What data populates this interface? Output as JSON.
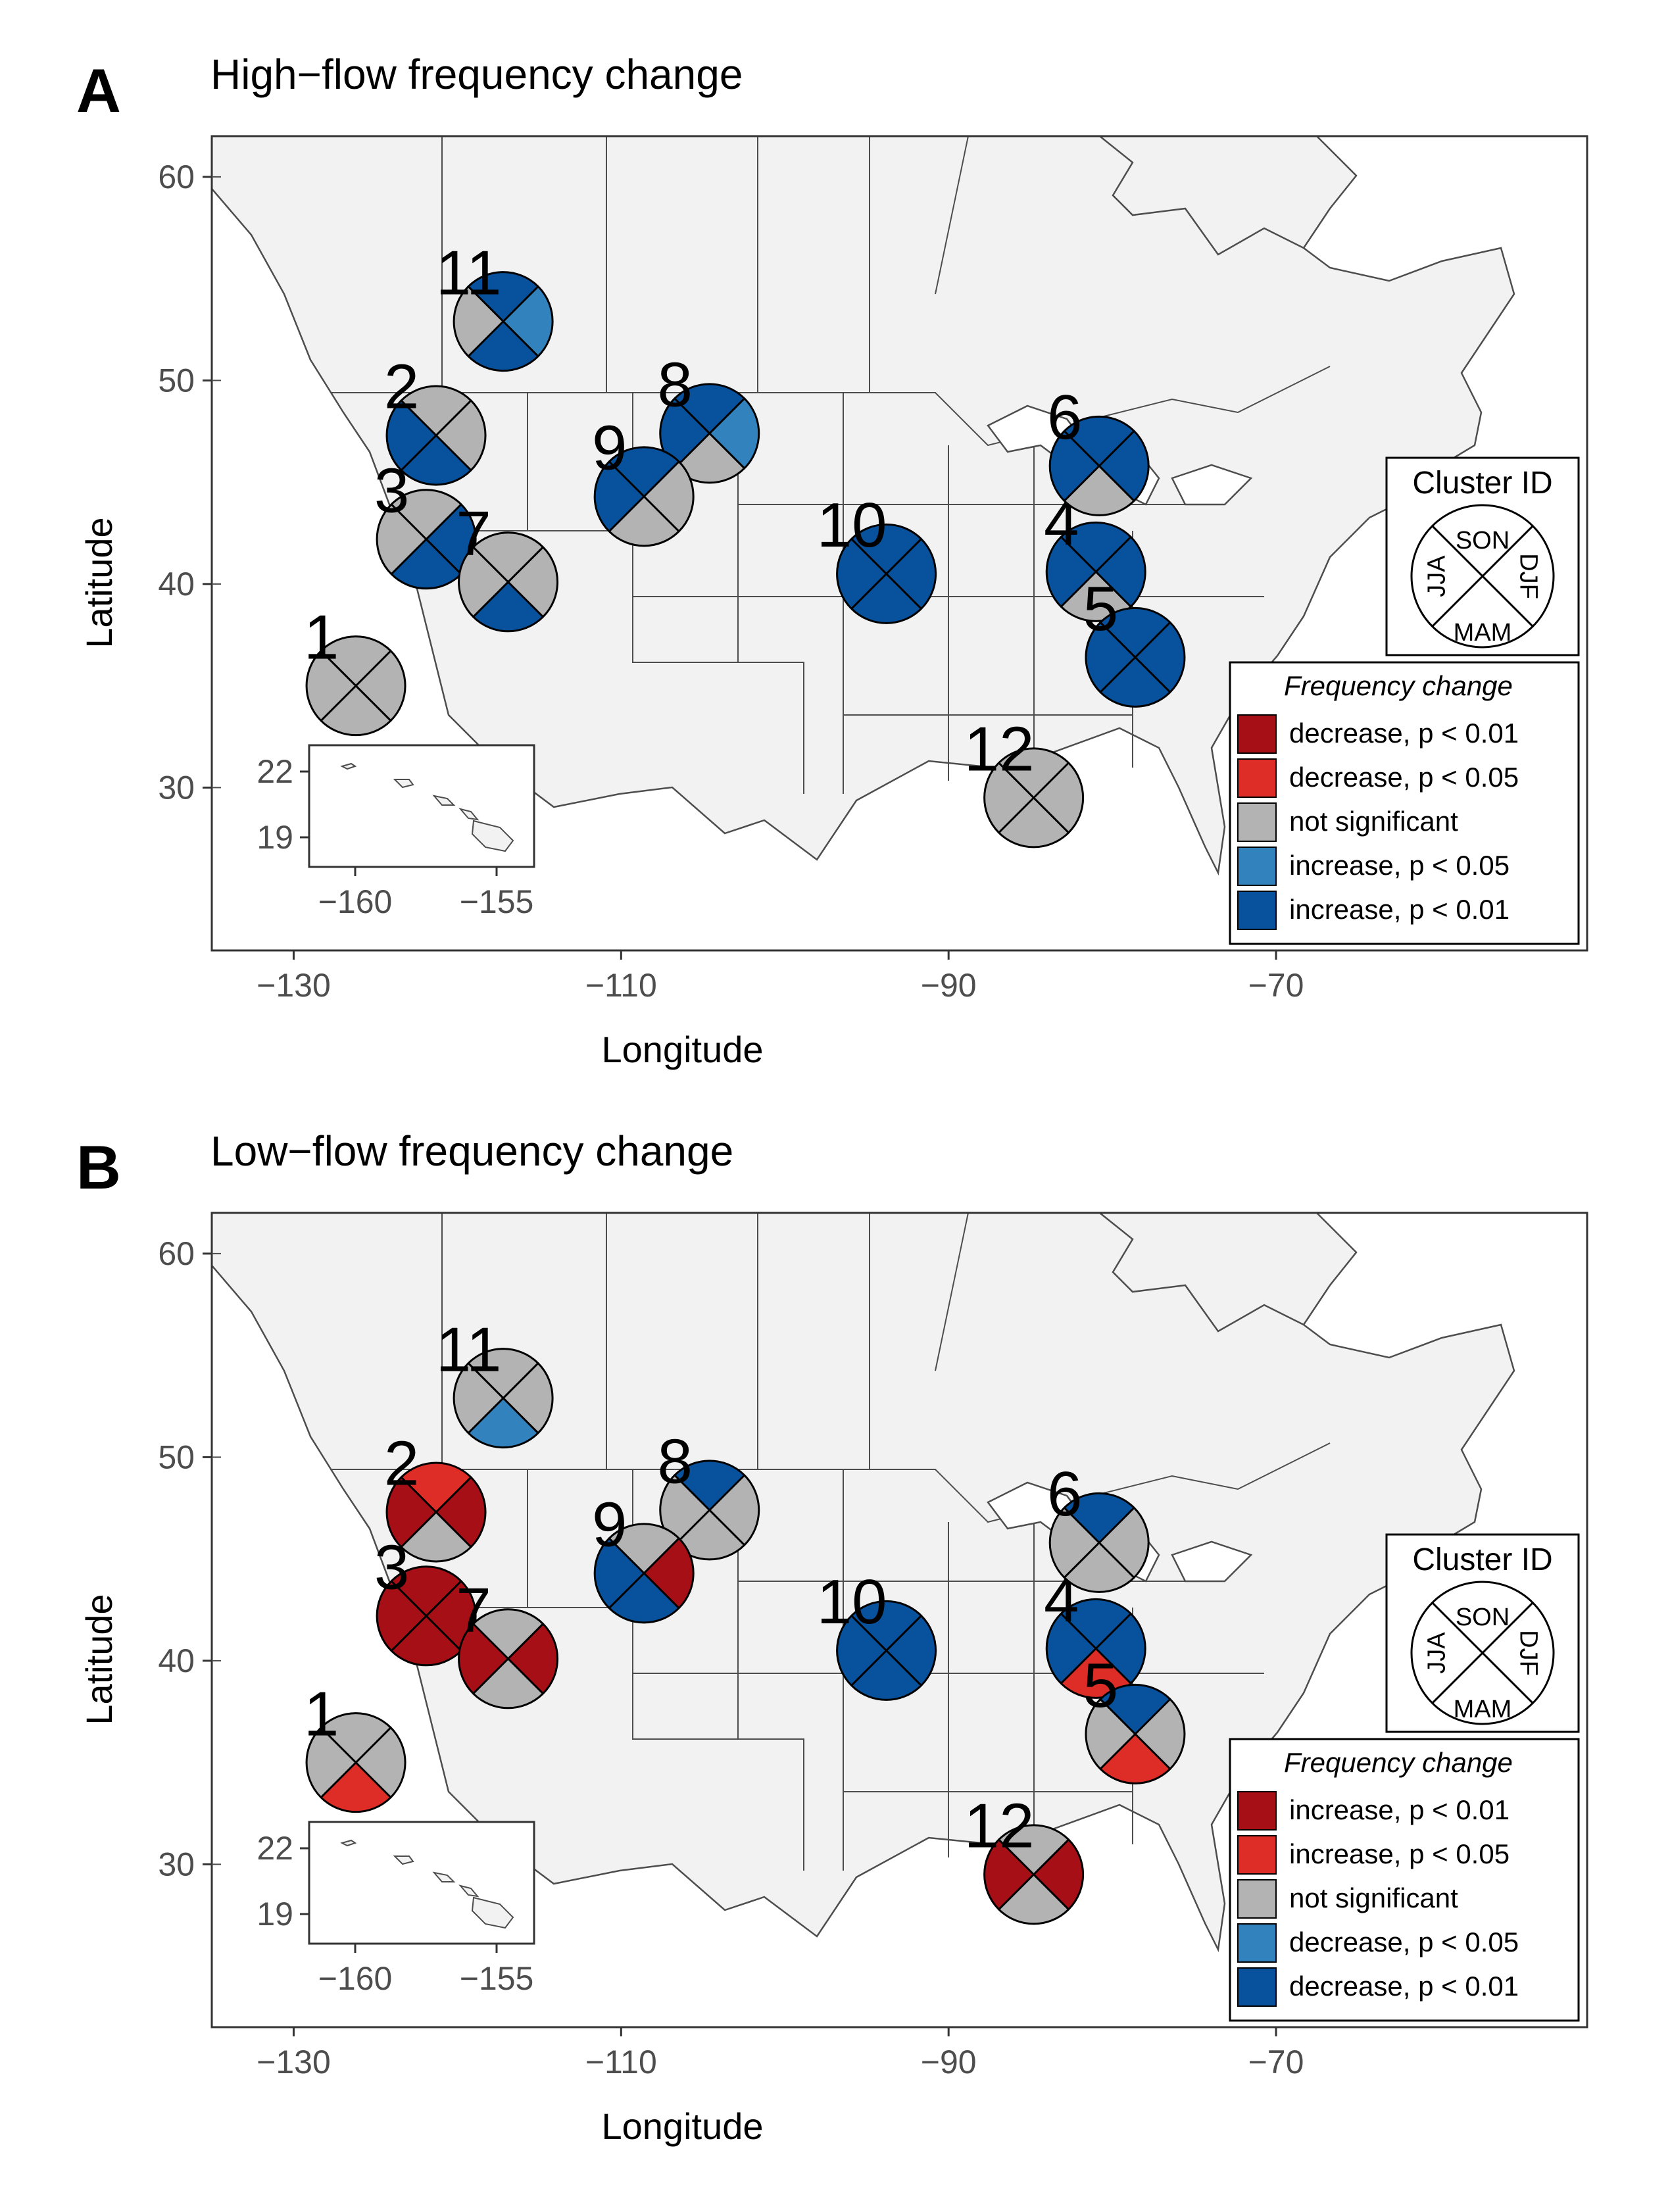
{
  "colors": {
    "dark_red": "#a50f15",
    "red": "#de2d26",
    "grey": "#b3b3b3",
    "light_blue": "#3182bd",
    "dark_blue": "#08519c",
    "land": "#f2f2f2",
    "border": "#4d4d4d"
  },
  "x_axis": {
    "label": "Longitude",
    "ticks": [
      "−130",
      "−110",
      "−90",
      "−70"
    ],
    "values": [
      -130,
      -110,
      -90,
      -70
    ],
    "range": [
      -135,
      -51
    ]
  },
  "y_axis": {
    "label": "Latitude",
    "ticks": [
      "60",
      "50",
      "40",
      "30"
    ],
    "values": [
      60,
      50,
      40,
      30
    ],
    "range": [
      22,
      62
    ]
  },
  "inset": {
    "x_ticks": [
      "−160",
      "−155"
    ],
    "y_ticks": [
      "22",
      "19"
    ]
  },
  "cluster_key": {
    "title": "Cluster ID",
    "top": "SON",
    "right": "DJF",
    "bottom": "MAM",
    "left": "JJA"
  },
  "panels": [
    {
      "letter": "A",
      "title": "High−flow frequency change",
      "legend": {
        "title": "Frequency change",
        "items": [
          {
            "label": "decrease, p < 0.01",
            "color": "#a50f15"
          },
          {
            "label": "decrease, p < 0.05",
            "color": "#de2d26"
          },
          {
            "label": "not significant",
            "color": "#b3b3b3"
          },
          {
            "label": "increase, p < 0.05",
            "color": "#3182bd"
          },
          {
            "label": "increase, p < 0.01",
            "color": "#08519c"
          }
        ]
      },
      "clusters": [
        {
          "id": "1",
          "lon": -126.2,
          "lat": 35.0,
          "son": "ns",
          "djf": "ns",
          "mam": "ns",
          "jja": "ns"
        },
        {
          "id": "2",
          "lon": -121.3,
          "lat": 47.3,
          "son": "ns",
          "djf": "ns",
          "mam": "d2",
          "jja": "d2"
        },
        {
          "id": "3",
          "lon": -121.9,
          "lat": 42.2,
          "son": "ns",
          "djf": "d2",
          "mam": "d2",
          "jja": "ns"
        },
        {
          "id": "4",
          "lon": -81.0,
          "lat": 40.6,
          "son": "d2",
          "djf": "d2",
          "mam": "ns",
          "jja": "d2"
        },
        {
          "id": "5",
          "lon": -78.6,
          "lat": 36.4,
          "son": "d2",
          "djf": "d2",
          "mam": "d2",
          "jja": "d2"
        },
        {
          "id": "6",
          "lon": -80.8,
          "lat": 45.8,
          "son": "d2",
          "djf": "d2",
          "mam": "ns",
          "jja": "d2"
        },
        {
          "id": "7",
          "lon": -116.9,
          "lat": 40.1,
          "son": "ns",
          "djf": "ns",
          "mam": "d2",
          "jja": "ns"
        },
        {
          "id": "8",
          "lon": -104.6,
          "lat": 47.4,
          "son": "d2",
          "djf": "d1",
          "mam": "ns",
          "jja": "d2"
        },
        {
          "id": "9",
          "lon": -108.6,
          "lat": 44.3,
          "son": "d2",
          "djf": "ns",
          "mam": "ns",
          "jja": "d2"
        },
        {
          "id": "10",
          "lon": -93.8,
          "lat": 40.5,
          "son": "d2",
          "djf": "d2",
          "mam": "d2",
          "jja": "d2"
        },
        {
          "id": "11",
          "lon": -117.2,
          "lat": 52.9,
          "son": "d2",
          "djf": "d1",
          "mam": "d2",
          "jja": "ns"
        },
        {
          "id": "12",
          "lon": -84.8,
          "lat": 29.5,
          "son": "ns",
          "djf": "ns",
          "mam": "ns",
          "jja": "ns"
        }
      ]
    },
    {
      "letter": "B",
      "title": "Low−flow frequency change",
      "legend": {
        "title": "Frequency change",
        "items": [
          {
            "label": "increase, p < 0.01",
            "color": "#a50f15"
          },
          {
            "label": "increase, p < 0.05",
            "color": "#de2d26"
          },
          {
            "label": "not significant",
            "color": "#b3b3b3"
          },
          {
            "label": "decrease, p < 0.05",
            "color": "#3182bd"
          },
          {
            "label": "decrease, p < 0.01",
            "color": "#08519c"
          }
        ]
      },
      "clusters": [
        {
          "id": "1",
          "lon": -126.2,
          "lat": 35.0,
          "son": "ns",
          "djf": "ns",
          "mam": "r1",
          "jja": "ns"
        },
        {
          "id": "2",
          "lon": -121.3,
          "lat": 47.3,
          "son": "r1",
          "djf": "r2",
          "mam": "ns",
          "jja": "r2"
        },
        {
          "id": "3",
          "lon": -121.9,
          "lat": 42.2,
          "son": "r2",
          "djf": "r2",
          "mam": "r2",
          "jja": "r2"
        },
        {
          "id": "4",
          "lon": -81.0,
          "lat": 40.6,
          "son": "d2",
          "djf": "d2",
          "mam": "r1",
          "jja": "d2"
        },
        {
          "id": "5",
          "lon": -78.6,
          "lat": 36.4,
          "son": "d2",
          "djf": "ns",
          "mam": "r1",
          "jja": "ns"
        },
        {
          "id": "6",
          "lon": -80.8,
          "lat": 45.8,
          "son": "d2",
          "djf": "ns",
          "mam": "ns",
          "jja": "ns"
        },
        {
          "id": "7",
          "lon": -116.9,
          "lat": 40.1,
          "son": "ns",
          "djf": "r2",
          "mam": "ns",
          "jja": "r2"
        },
        {
          "id": "8",
          "lon": -104.6,
          "lat": 47.4,
          "son": "d2",
          "djf": "ns",
          "mam": "ns",
          "jja": "ns"
        },
        {
          "id": "9",
          "lon": -108.6,
          "lat": 44.3,
          "son": "ns",
          "djf": "r2",
          "mam": "d2",
          "jja": "d2"
        },
        {
          "id": "10",
          "lon": -93.8,
          "lat": 40.5,
          "son": "d2",
          "djf": "d2",
          "mam": "d2",
          "jja": "d2"
        },
        {
          "id": "11",
          "lon": -117.2,
          "lat": 52.9,
          "son": "ns",
          "djf": "ns",
          "mam": "d1",
          "jja": "ns"
        },
        {
          "id": "12",
          "lon": -84.8,
          "lat": 29.5,
          "son": "ns",
          "djf": "r2",
          "mam": "ns",
          "jja": "r2"
        }
      ]
    }
  ]
}
